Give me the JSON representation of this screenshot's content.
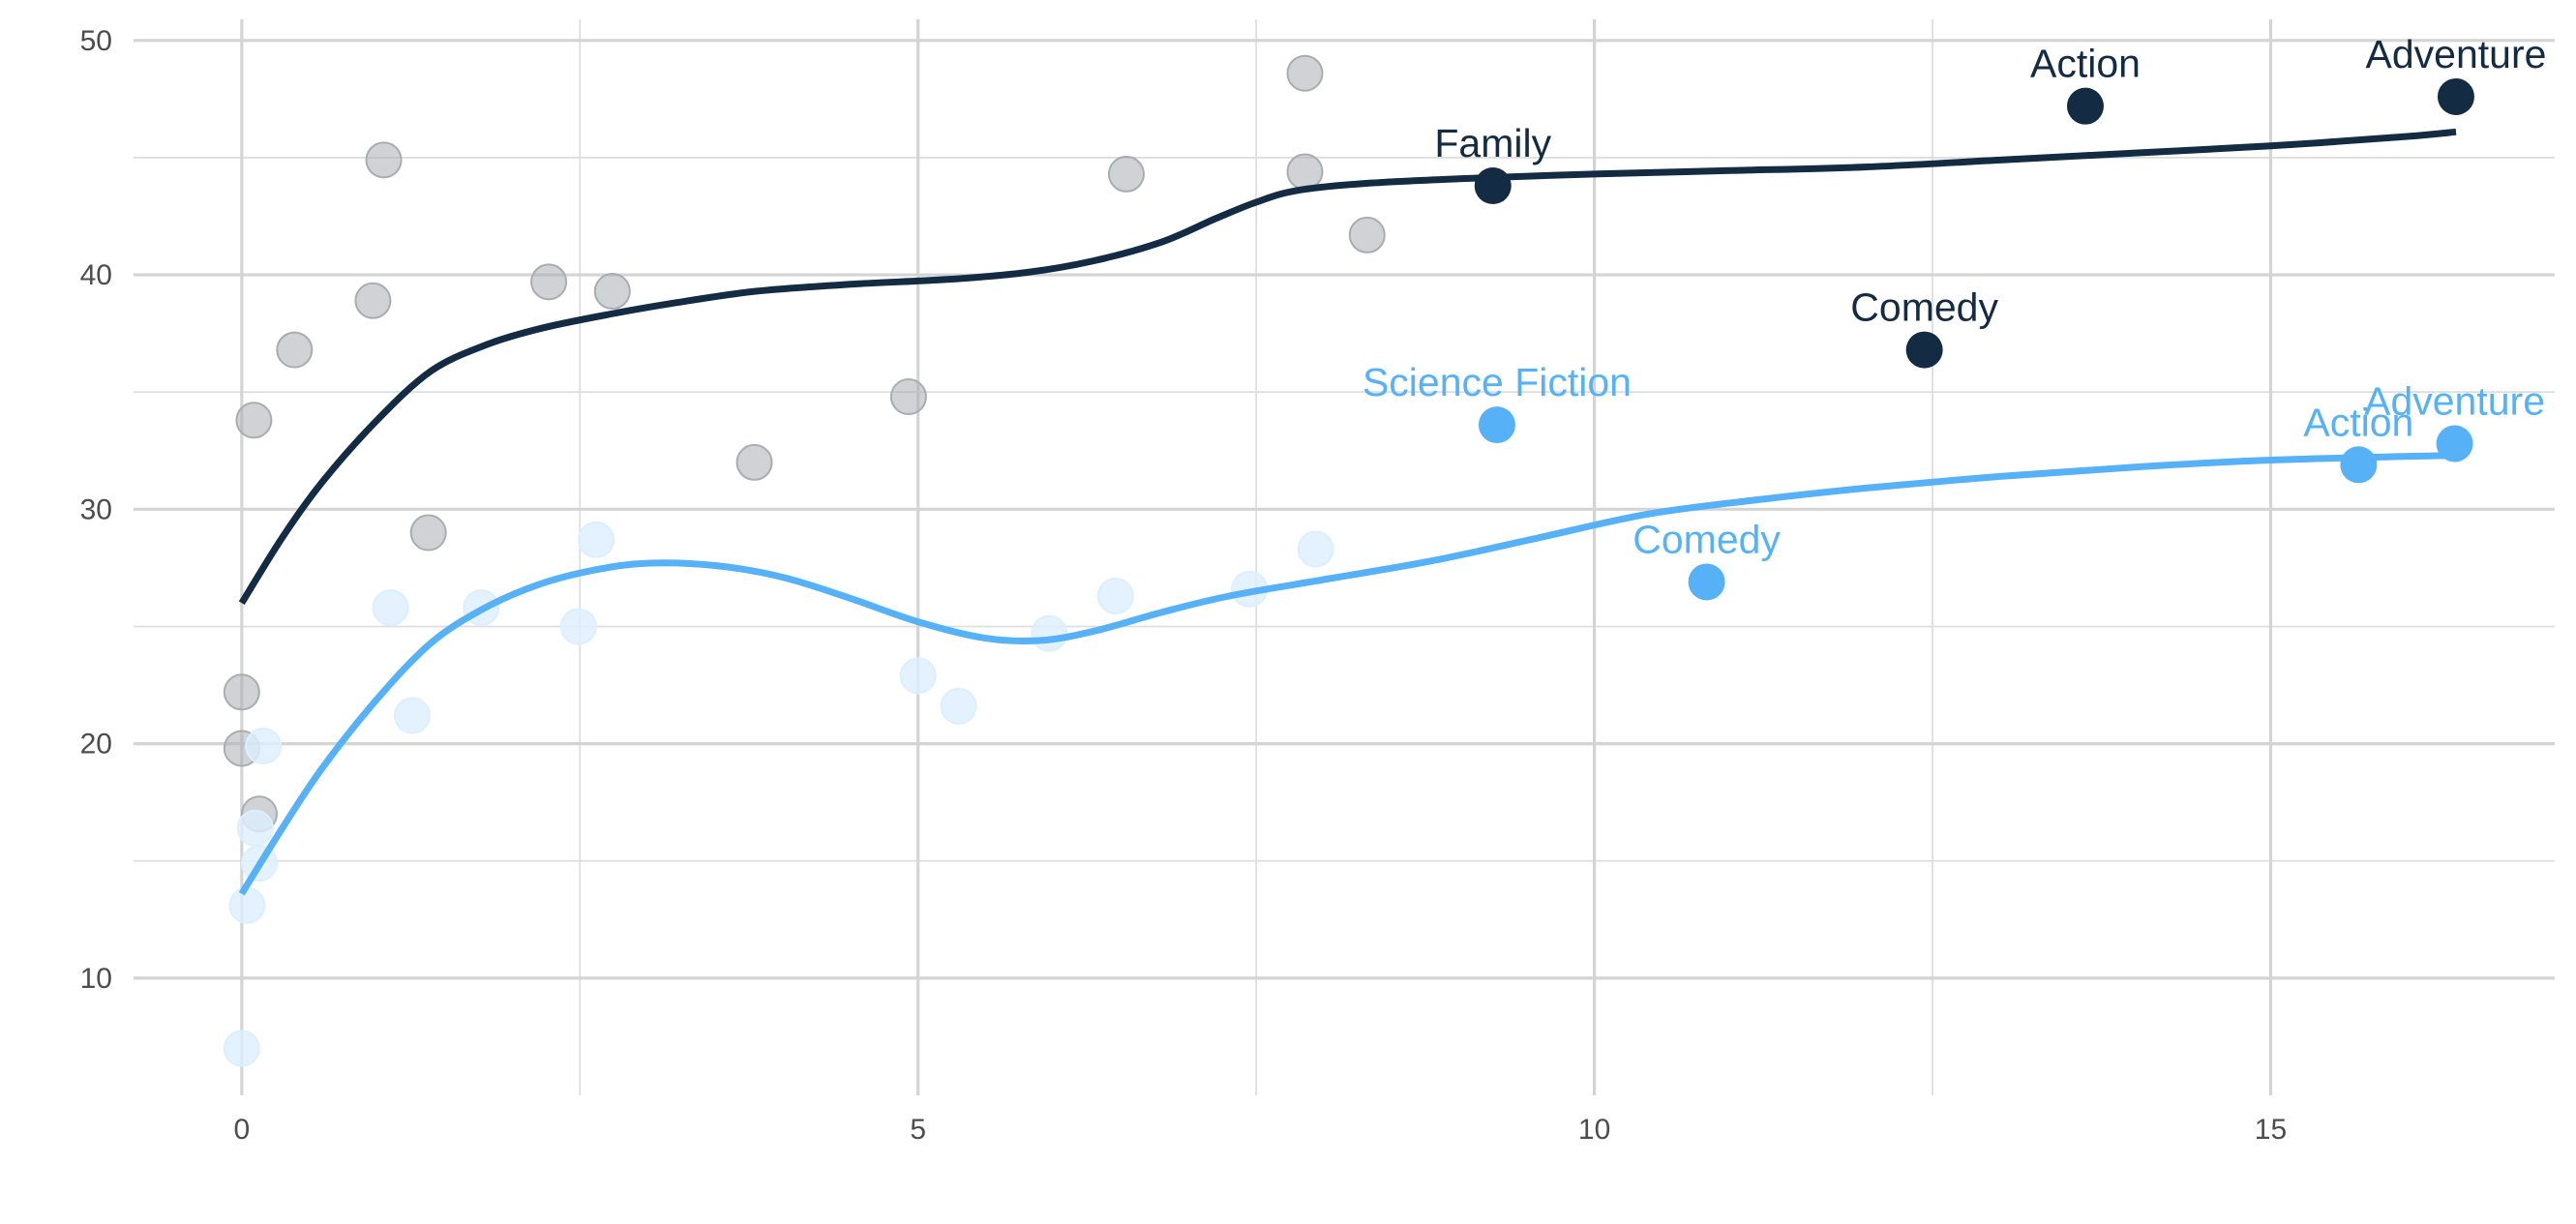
{
  "chart_data": {
    "type": "scatter",
    "title": "",
    "xlabel": "",
    "ylabel": "",
    "xlim": [
      -0.8,
      17.1
    ],
    "ylim": [
      5.0,
      50.9
    ],
    "x_ticks": [
      0,
      5,
      10,
      15
    ],
    "y_ticks": [
      10,
      20,
      30,
      40,
      50
    ],
    "grid": true,
    "legend": "none",
    "series": [
      {
        "color": "#132b43",
        "faded_color": "#a9adb2",
        "background_points": [
          [
            0.0,
            22.2
          ],
          [
            0.0,
            19.8
          ],
          [
            0.13,
            17.0
          ],
          [
            0.09,
            33.8
          ],
          [
            0.39,
            36.8
          ],
          [
            0.97,
            38.9
          ],
          [
            1.05,
            44.9
          ],
          [
            1.38,
            29.0
          ],
          [
            2.27,
            39.7
          ],
          [
            2.74,
            39.3
          ],
          [
            3.79,
            32.0
          ],
          [
            4.93,
            34.8
          ],
          [
            6.54,
            44.3
          ],
          [
            7.86,
            48.6
          ],
          [
            7.86,
            44.4
          ],
          [
            8.32,
            41.7
          ]
        ],
        "labeled_points": [
          {
            "x": 9.25,
            "y": 43.8,
            "label": "Family"
          },
          {
            "x": 12.44,
            "y": 36.8,
            "label": "Comedy"
          },
          {
            "x": 13.63,
            "y": 47.2,
            "label": "Action"
          },
          {
            "x": 16.37,
            "y": 47.6,
            "label": "Adventure"
          }
        ],
        "trend": [
          [
            0.0,
            26.0
          ],
          [
            0.3,
            28.8
          ],
          [
            0.6,
            31.2
          ],
          [
            1.0,
            33.8
          ],
          [
            1.4,
            35.9
          ],
          [
            1.8,
            37.0
          ],
          [
            2.2,
            37.7
          ],
          [
            2.7,
            38.3
          ],
          [
            3.2,
            38.8
          ],
          [
            3.8,
            39.3
          ],
          [
            4.5,
            39.6
          ],
          [
            5.2,
            39.8
          ],
          [
            5.8,
            40.1
          ],
          [
            6.3,
            40.6
          ],
          [
            6.8,
            41.4
          ],
          [
            7.2,
            42.4
          ],
          [
            7.5,
            43.1
          ],
          [
            7.8,
            43.6
          ],
          [
            8.3,
            43.9
          ],
          [
            9.0,
            44.1
          ],
          [
            10.0,
            44.3
          ],
          [
            11.0,
            44.45
          ],
          [
            12.0,
            44.6
          ],
          [
            13.0,
            44.9
          ],
          [
            14.0,
            45.2
          ],
          [
            15.0,
            45.5
          ],
          [
            16.0,
            45.9
          ],
          [
            16.37,
            46.1
          ]
        ]
      },
      {
        "color": "#56b1f7",
        "faded_color": "#dceffe",
        "background_points": [
          [
            0.0,
            7.0
          ],
          [
            0.04,
            13.1
          ],
          [
            0.1,
            16.4
          ],
          [
            0.13,
            14.9
          ],
          [
            0.16,
            19.9
          ],
          [
            1.1,
            25.8
          ],
          [
            1.26,
            21.2
          ],
          [
            1.77,
            25.8
          ],
          [
            2.49,
            25.0
          ],
          [
            2.62,
            28.7
          ],
          [
            5.0,
            22.9
          ],
          [
            5.3,
            21.6
          ],
          [
            5.97,
            24.7
          ],
          [
            6.46,
            26.3
          ],
          [
            7.45,
            26.6
          ],
          [
            7.94,
            28.3
          ]
        ],
        "labeled_points": [
          {
            "x": 9.28,
            "y": 33.6,
            "label": "Science Fiction"
          },
          {
            "x": 10.83,
            "y": 26.9,
            "label": "Comedy"
          },
          {
            "x": 15.65,
            "y": 31.9,
            "label": "Action"
          },
          {
            "x": 16.36,
            "y": 32.8,
            "label": "Adventure"
          }
        ],
        "trend": [
          [
            0.0,
            13.6
          ],
          [
            0.3,
            16.4
          ],
          [
            0.6,
            19.0
          ],
          [
            1.0,
            21.9
          ],
          [
            1.4,
            24.3
          ],
          [
            1.8,
            25.8
          ],
          [
            2.2,
            26.8
          ],
          [
            2.6,
            27.4
          ],
          [
            3.0,
            27.7
          ],
          [
            3.5,
            27.6
          ],
          [
            4.0,
            27.1
          ],
          [
            4.5,
            26.2
          ],
          [
            5.0,
            25.2
          ],
          [
            5.5,
            24.5
          ],
          [
            5.9,
            24.4
          ],
          [
            6.3,
            24.8
          ],
          [
            6.8,
            25.6
          ],
          [
            7.3,
            26.3
          ],
          [
            8.0,
            27.0
          ],
          [
            8.8,
            27.8
          ],
          [
            9.6,
            28.8
          ],
          [
            10.4,
            29.8
          ],
          [
            11.2,
            30.4
          ],
          [
            12.0,
            30.9
          ],
          [
            13.0,
            31.4
          ],
          [
            14.0,
            31.8
          ],
          [
            15.0,
            32.1
          ],
          [
            16.36,
            32.3
          ]
        ]
      }
    ]
  }
}
